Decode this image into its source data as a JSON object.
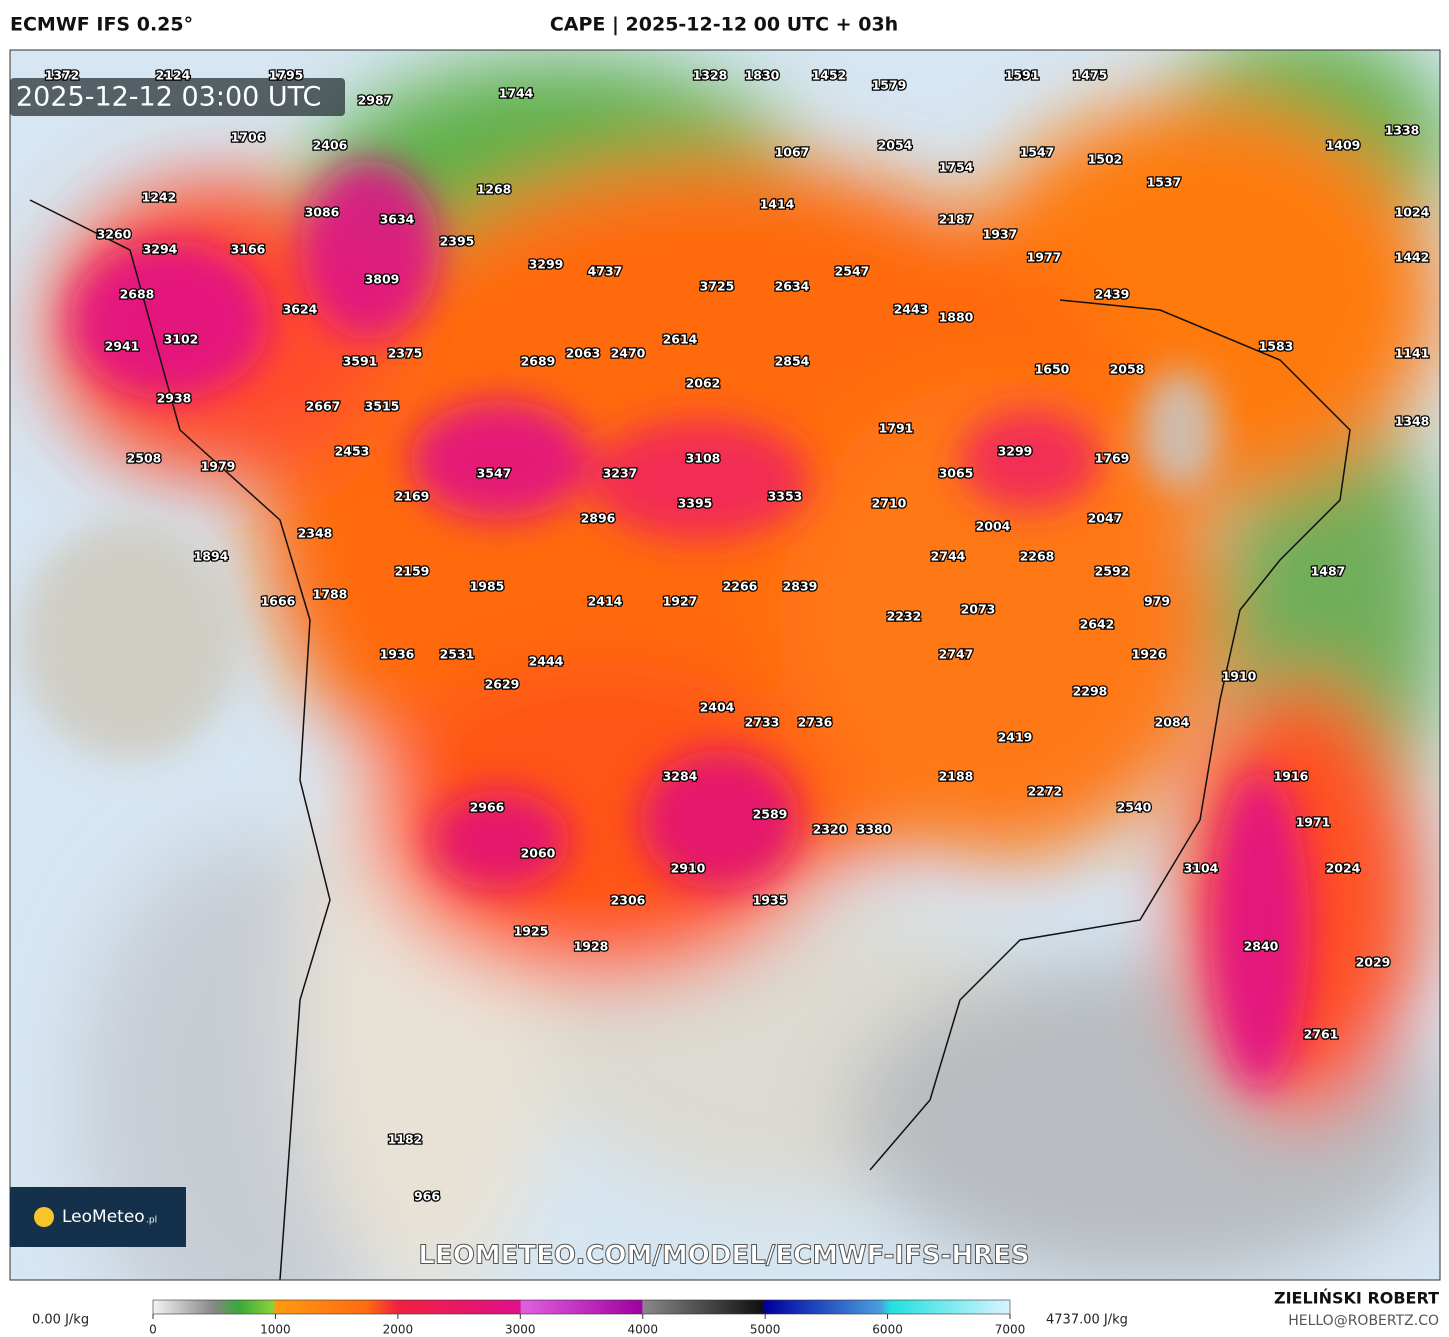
{
  "header": {
    "model": "ECMWF IFS 0.25°",
    "title": "CAPE | 2025-12-12 00 UTC + 03h"
  },
  "map": {
    "timestamp": "2025-12-12 03:00 UTC",
    "watermark": "LEOMETEO.COM/MODEL/ECMWF-IFS-HRES",
    "logo": {
      "name": "LeoMeteo",
      "suffix": ".pl"
    },
    "labels": [
      1372,
      2124,
      1795,
      2987,
      1744,
      1328,
      1830,
      1452,
      1579,
      1591,
      1475,
      1338,
      1409,
      1706,
      2406,
      1067,
      2054,
      1547,
      1502,
      1754,
      1537,
      1242,
      1268,
      1414,
      3086,
      3634,
      2187,
      1024,
      3260,
      1937,
      3294,
      3166,
      2395,
      1977,
      1442,
      3299,
      4737,
      2547,
      3809,
      3725,
      2634,
      2439,
      2688,
      3624,
      2443,
      1880,
      3102,
      2941,
      2614,
      1583,
      1141,
      3591,
      2375,
      2689,
      2063,
      2470,
      2854,
      1650,
      2058,
      2062,
      2938,
      2667,
      3515,
      1791,
      1348,
      2453,
      3108,
      3299,
      1769,
      2508,
      1979,
      3547,
      3237,
      3065,
      2169,
      3395,
      3353,
      2710,
      2896,
      2004,
      2047,
      2348,
      2744,
      2268,
      1894,
      2159,
      1985,
      2266,
      2839,
      2592,
      1487,
      1788,
      1666,
      2414,
      1927,
      979,
      2073,
      2232,
      2642,
      1936,
      2531,
      2444,
      2747,
      1926,
      2629,
      1910,
      2298,
      2404,
      2733,
      2736,
      2084,
      2419,
      3284,
      2188,
      1916,
      2272,
      2966,
      2589,
      2540,
      2320,
      3380,
      1971,
      2060,
      2910,
      3104,
      2024,
      2306,
      1935,
      1925,
      1928,
      2840,
      2029,
      2761,
      1182,
      966
    ]
  },
  "colorbar": {
    "min_label": "0.00 J/kg",
    "max_label": "4737.00 J/kg",
    "lim": [
      0,
      7000
    ],
    "ticks": [
      0,
      1000,
      2000,
      3000,
      4000,
      5000,
      6000,
      7000
    ]
  },
  "footer": {
    "author": "ZIELIŃSKI ROBERT",
    "contact": "HELLO@ROBERTZ.CO"
  }
}
